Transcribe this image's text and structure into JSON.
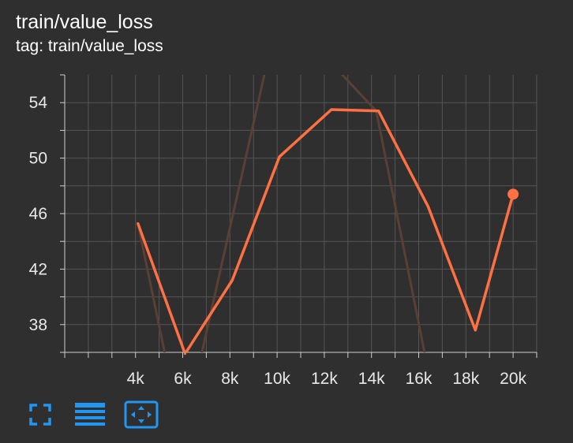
{
  "card": {
    "title": "train/value_loss",
    "tag_line": "tag: train/value_loss"
  },
  "colors": {
    "background": "#2f2f2f",
    "grid": "#555555",
    "axis": "#cfcfcf",
    "series": "#ff7043",
    "smoothed_trace": "#5a3f35",
    "toolbar_icon": "#2196f3"
  },
  "toolbar": {
    "icons": [
      "fullscreen-icon",
      "toggle-y-log-icon",
      "fit-domain-icon"
    ]
  },
  "chart_data": {
    "type": "line",
    "title": "train/value_loss",
    "xlabel": "",
    "ylabel": "",
    "xlim": [
      1000,
      21000
    ],
    "ylim": [
      36,
      56
    ],
    "x_ticks": [
      4000,
      6000,
      8000,
      10000,
      12000,
      14000,
      16000,
      18000,
      20000
    ],
    "x_tick_labels": [
      "4k",
      "6k",
      "8k",
      "10k",
      "12k",
      "14k",
      "16k",
      "18k",
      "20k"
    ],
    "y_ticks": [
      38,
      42,
      46,
      50,
      54
    ],
    "y_tick_labels": [
      "38",
      "42",
      "46",
      "50",
      "54"
    ],
    "grid": true,
    "series": [
      {
        "x": [
          4100,
          6100,
          8100,
          10100,
          12300,
          14300,
          16400,
          18400,
          20000
        ],
        "y": [
          45.3,
          35.9,
          41.2,
          50.1,
          53.5,
          53.4,
          46.5,
          37.6,
          47.4
        ],
        "last_point_marker": true
      }
    ]
  }
}
